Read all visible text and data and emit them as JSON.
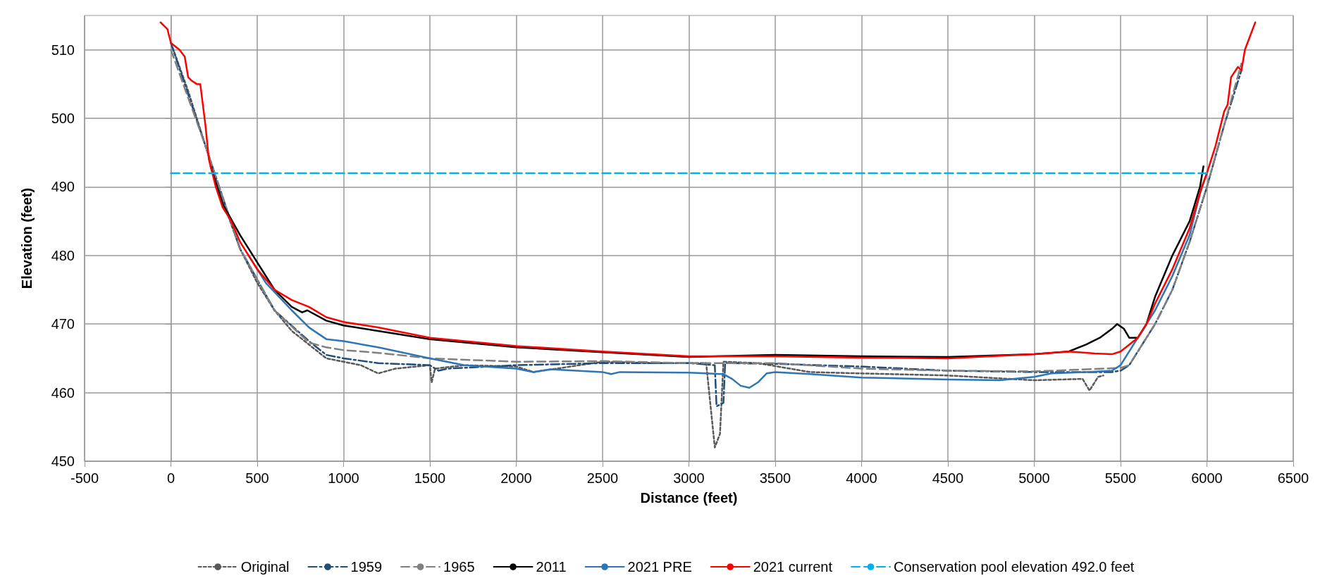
{
  "chart_data": {
    "type": "line",
    "xlabel": "Distance (feet)",
    "ylabel": "Elevation (feet)",
    "xlim": [
      -500,
      6500
    ],
    "xticks": [
      -500,
      0,
      500,
      1000,
      1500,
      2000,
      2500,
      3000,
      3500,
      4000,
      4500,
      5000,
      5500,
      6000,
      6500
    ],
    "ylim": [
      450,
      515
    ],
    "yticks": [
      450,
      460,
      470,
      480,
      490,
      500,
      510
    ],
    "grid": true,
    "legend": "bottom",
    "marker": "none",
    "series": [
      {
        "name": "Original",
        "color": "#595959",
        "line_style": "dotted",
        "x": [
          0,
          100,
          200,
          300,
          400,
          500,
          600,
          700,
          800,
          900,
          1000,
          1100,
          1200,
          1300,
          1500,
          1510,
          1530,
          1700,
          2000,
          2100,
          2500,
          2800,
          3100,
          3150,
          3180,
          3200,
          3400,
          3700,
          4000,
          4500,
          5000,
          5280,
          5320,
          5370,
          5400
        ],
        "values": [
          511,
          504,
          496,
          488,
          481,
          476,
          472,
          469,
          467,
          465,
          464.5,
          464,
          462.8,
          463.5,
          464,
          461.5,
          463.5,
          464,
          463.8,
          463,
          464.5,
          464.3,
          464.3,
          452,
          454,
          464.5,
          464.3,
          463,
          462.8,
          462.5,
          461.8,
          462,
          460.3,
          462.3,
          462.5
        ]
      },
      {
        "name": "1959",
        "color": "#1f4e79",
        "line_style": "dashdot",
        "x": [
          0,
          200,
          400,
          600,
          800,
          900,
          1000,
          1200,
          1500,
          1550,
          1600,
          2000,
          2500,
          3000,
          3150,
          3160,
          3200,
          3210,
          3500,
          4000,
          4500,
          5000,
          5450,
          5500,
          5550,
          5700,
          5800,
          5900,
          6000,
          6100,
          6200
        ],
        "values": [
          511,
          496,
          481,
          472,
          467.5,
          465.5,
          465,
          464.3,
          464,
          463.2,
          463.5,
          464,
          464.3,
          464.3,
          464,
          458,
          458.5,
          464.3,
          464.2,
          463.8,
          463.2,
          463,
          463,
          463.2,
          464,
          470,
          475,
          482,
          490,
          499,
          507
        ]
      },
      {
        "name": "1965",
        "color": "#808080",
        "line_style": "dashed",
        "x": [
          0,
          200,
          400,
          600,
          800,
          900,
          1000,
          1200,
          1500,
          2000,
          2500,
          3000,
          3500,
          4000,
          4500,
          5000,
          5500,
          5550,
          5700,
          5800,
          5900,
          6000,
          6100,
          6200
        ],
        "values": [
          510,
          496,
          481,
          472,
          467.3,
          466.6,
          466.2,
          465.8,
          465,
          464.5,
          464.6,
          464.3,
          464.3,
          463.5,
          463.2,
          463.1,
          463.6,
          464,
          470,
          475,
          482,
          490,
          499,
          508
        ]
      },
      {
        "name": "2011",
        "color": "#000000",
        "line_style": "solid",
        "x": [
          230,
          300,
          400,
          500,
          600,
          700,
          760,
          790,
          900,
          1000,
          1500,
          2000,
          2500,
          3000,
          3500,
          4000,
          4500,
          5000,
          5200,
          5300,
          5380,
          5450,
          5480,
          5520,
          5550,
          5600,
          5650,
          5700,
          5800,
          5900,
          5960,
          5980
        ],
        "values": [
          493,
          487.5,
          483,
          479,
          475,
          472.5,
          471.7,
          472,
          470.5,
          469.8,
          467.8,
          466.6,
          465.9,
          465.2,
          465.5,
          465.3,
          465.2,
          465.6,
          466,
          467,
          468,
          469.3,
          470,
          469.3,
          468,
          468,
          470,
          474,
          480,
          485,
          490,
          493
        ]
      },
      {
        "name": "2021 PRE",
        "color": "#2e75b6",
        "line_style": "solid",
        "x": [
          450,
          550,
          700,
          800,
          900,
          1000,
          1200,
          1500,
          1700,
          2000,
          2100,
          2200,
          2500,
          2550,
          2600,
          3000,
          3100,
          3200,
          3250,
          3300,
          3350,
          3400,
          3450,
          3500,
          3700,
          4000,
          4500,
          4800,
          5000,
          5100,
          5300,
          5450,
          5500,
          5550,
          5600,
          5700,
          5800,
          5900,
          5960,
          6000
        ],
        "values": [
          480,
          476,
          472,
          469.5,
          467.8,
          467.5,
          466.6,
          465,
          464,
          463.5,
          463,
          463.4,
          463,
          462.7,
          463,
          462.9,
          462.8,
          462.7,
          462,
          461,
          460.7,
          461.5,
          462.8,
          463,
          462.7,
          462.2,
          461.9,
          461.8,
          462.3,
          462.8,
          463,
          463.2,
          464,
          466,
          468,
          472,
          477,
          483,
          489,
          492
        ]
      },
      {
        "name": "2021 current",
        "color": "#ff0000",
        "line_style": "solid",
        "x": [
          -60,
          -20,
          0,
          50,
          80,
          100,
          120,
          150,
          170,
          180,
          200,
          220,
          240,
          260,
          300,
          350,
          400,
          450,
          500,
          600,
          700,
          800,
          900,
          1000,
          1200,
          1500,
          2000,
          2500,
          3000,
          3500,
          4000,
          4500,
          5000,
          5200,
          5350,
          5450,
          5500,
          5550,
          5600,
          5650,
          5700,
          5800,
          5900,
          5970,
          6000,
          6050,
          6100,
          6120,
          6140,
          6180,
          6200,
          6220,
          6250,
          6280
        ],
        "values": [
          514,
          513,
          511,
          510,
          509,
          506,
          505.5,
          505,
          505,
          503,
          499,
          494,
          492,
          490,
          487,
          485,
          482,
          480,
          478,
          475,
          473.5,
          472.5,
          471,
          470.3,
          469.5,
          468,
          466.8,
          466,
          465.3,
          465.3,
          465.1,
          465,
          465.6,
          466,
          465.7,
          465.6,
          466,
          467,
          468,
          470,
          473,
          478,
          484,
          490,
          492,
          496,
          501,
          502,
          506,
          507.5,
          507,
          510,
          512,
          514
        ]
      },
      {
        "name": "Conservation pool elevation 492.0 feet",
        "color": "#00b0f0",
        "line_style": "dashed",
        "x": [
          0,
          6000
        ],
        "values": [
          492,
          492
        ]
      }
    ]
  }
}
